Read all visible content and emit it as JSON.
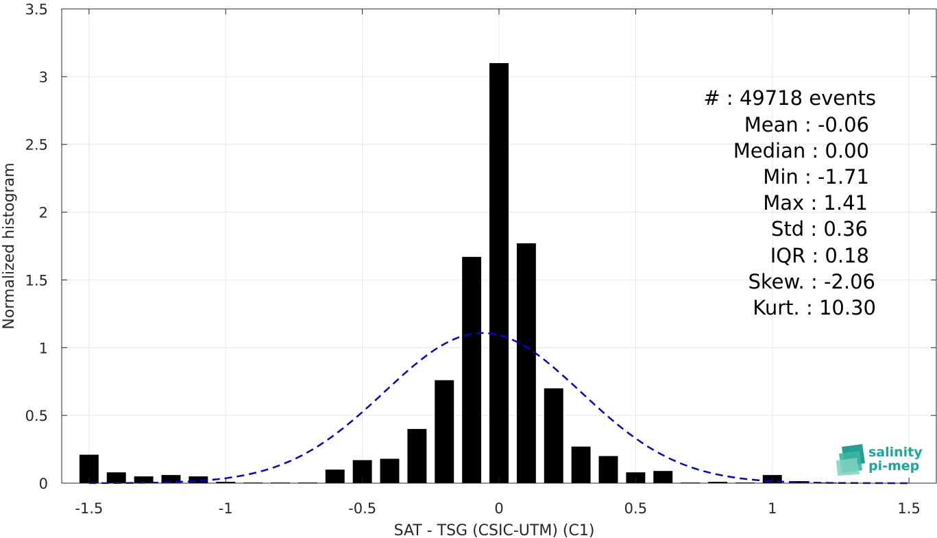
{
  "chart_data": {
    "type": "bar",
    "xlabel": "SAT - TSG (CSIC-UTM) (C1)",
    "ylabel": "Normalized histogram",
    "xlim": [
      -1.6,
      1.6
    ],
    "ylim": [
      0,
      3.5
    ],
    "xticks": [
      -1.5,
      -1,
      -0.5,
      0,
      0.5,
      1,
      1.5
    ],
    "xtick_labels": [
      "-1.5",
      "-1",
      "-0.5",
      "0",
      "0.5",
      "1",
      "1.5"
    ],
    "yticks": [
      0,
      0.5,
      1,
      1.5,
      2,
      2.5,
      3,
      3.5
    ],
    "ytick_labels": [
      "0",
      "0.5",
      "1",
      "1.5",
      "2",
      "2.5",
      "3",
      "3.5"
    ],
    "grid": true,
    "bar_color": "#000000",
    "bin_width": 0.1,
    "x": [
      -1.5,
      -1.4,
      -1.3,
      -1.2,
      -1.1,
      -1.0,
      -0.9,
      -0.8,
      -0.7,
      -0.6,
      -0.5,
      -0.4,
      -0.3,
      -0.2,
      -0.1,
      0.0,
      0.1,
      0.2,
      0.3,
      0.4,
      0.5,
      0.6,
      0.7,
      0.8,
      0.9,
      1.0,
      1.1,
      1.2,
      1.3,
      1.4
    ],
    "values": [
      0.21,
      0.08,
      0.05,
      0.06,
      0.05,
      0.01,
      0.005,
      0.005,
      0.005,
      0.1,
      0.17,
      0.18,
      0.4,
      0.76,
      1.67,
      3.1,
      1.77,
      0.7,
      0.27,
      0.2,
      0.08,
      0.09,
      0.005,
      0.01,
      0.005,
      0.06,
      0.015,
      0.005,
      0.0,
      0.0
    ],
    "fit_curve": {
      "type": "normal",
      "mean": -0.06,
      "std": 0.36,
      "color": "#0000dd",
      "style": "dashed",
      "x_range": [
        -1.5,
        1.5
      ]
    }
  },
  "stats": [
    {
      "label": "#  : 49718 events"
    },
    {
      "label": "Mean : -0.06"
    },
    {
      "label": "Median : 0.00"
    },
    {
      "label": "Min : -1.71"
    },
    {
      "label": "Max : 1.41"
    },
    {
      "label": "Std : 0.36"
    },
    {
      "label": "IQR : 0.18"
    },
    {
      "label": "Skew. : -2.06"
    },
    {
      "label": "Kurt. : 10.30"
    }
  ],
  "logo": {
    "line1": "salinity",
    "line2": "pi-mep",
    "color": "#1aa89a"
  }
}
